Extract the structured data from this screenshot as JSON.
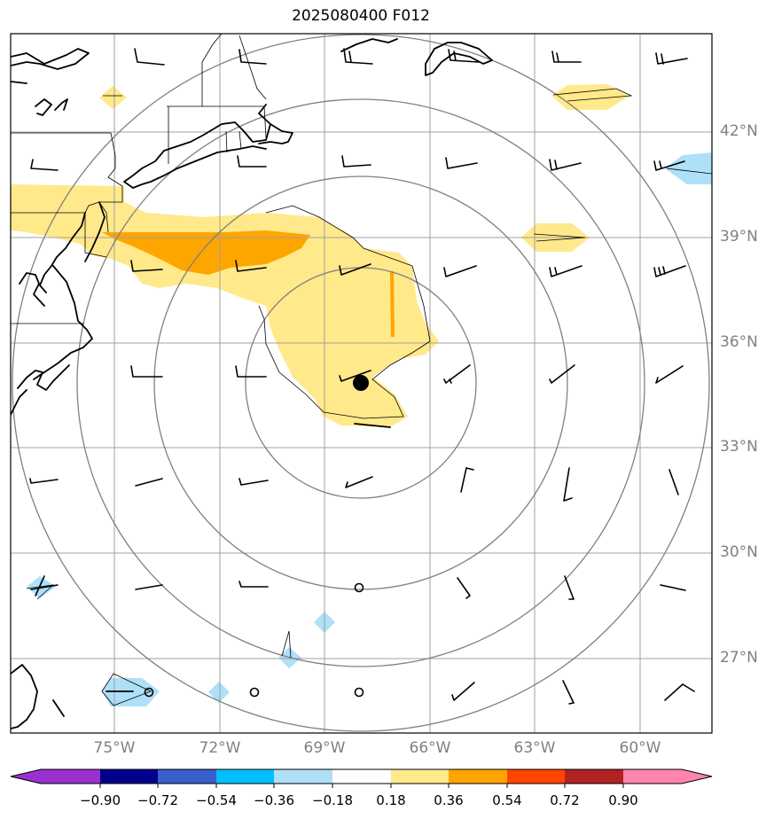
{
  "title": "2025080400 F012",
  "lat_labels": [
    "42°N",
    "39°N",
    "36°N",
    "33°N",
    "30°N",
    "27°N"
  ],
  "lon_labels": [
    "75°W",
    "72°W",
    "69°W",
    "66°W",
    "63°W",
    "60°W"
  ],
  "colorbar": {
    "ticks": [
      "−0.90",
      "−0.72",
      "−0.54",
      "−0.36",
      "−0.18",
      "0.18",
      "0.36",
      "0.54",
      "0.72",
      "0.90"
    ],
    "colors": [
      "#9b30d0",
      "#00008b",
      "#3a5fcd",
      "#00bfff",
      "#b0e0f8",
      "#ffffff",
      "#ffe98a",
      "#ffa500",
      "#ff4500",
      "#b22222",
      "#ff85b0"
    ]
  },
  "map_colors": {
    "grid": "#a0a0a0",
    "contour": "#808080",
    "positive_weak": "#ffe98a",
    "positive_strong": "#ffa500",
    "negative_weak": "#aee0f8",
    "coast": "#000000",
    "storm_center": "#000000"
  }
}
